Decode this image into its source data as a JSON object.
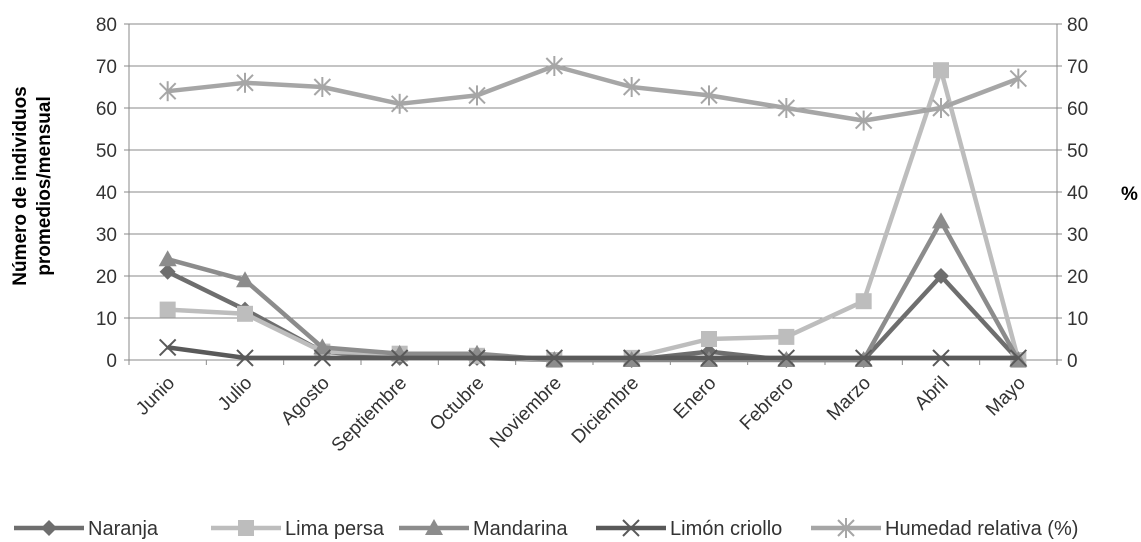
{
  "chart_data": {
    "type": "line",
    "categories": [
      "Junio",
      "Julio",
      "Agosto",
      "Septiembre",
      "Octubre",
      "Noviembre",
      "Diciembre",
      "Enero",
      "Febrero",
      "Marzo",
      "Abril",
      "Mayo"
    ],
    "ylabel_line1": "Número de individuos",
    "ylabel_line2": "promedios/mensual",
    "y2label": "%",
    "ylim": [
      0,
      80
    ],
    "y2lim": [
      0,
      80
    ],
    "yticks": [
      "0",
      "10",
      "20",
      "30",
      "40",
      "50",
      "60",
      "70",
      "80"
    ],
    "y2ticks": [
      "0",
      "10",
      "20",
      "30",
      "40",
      "50",
      "60",
      "70",
      "80"
    ],
    "grid": true,
    "legend_position": "bottom",
    "series": [
      {
        "name": "Naranja",
        "color": "#6e6e6e",
        "marker": "diamond",
        "axis": "left",
        "values": [
          21,
          12,
          2,
          0.5,
          0.5,
          0,
          0,
          2,
          0,
          0,
          20,
          0
        ]
      },
      {
        "name": "Lima persa",
        "color": "#bdbdbd",
        "marker": "square",
        "axis": "left",
        "values": [
          12,
          11,
          2,
          1.5,
          1,
          0,
          0.5,
          5,
          5.5,
          14,
          69,
          0
        ]
      },
      {
        "name": "Mandarina",
        "color": "#8c8c8c",
        "marker": "triangle",
        "axis": "left",
        "values": [
          24,
          19,
          3,
          1.5,
          1.5,
          0,
          0,
          0,
          0,
          0,
          33,
          0
        ]
      },
      {
        "name": "Limón criollo",
        "color": "#595959",
        "marker": "x",
        "axis": "left",
        "values": [
          3,
          0.5,
          0.5,
          0.5,
          0.5,
          0.5,
          0.5,
          0.5,
          0.5,
          0.5,
          0.5,
          0.5
        ]
      },
      {
        "name": "Humedad relativa (%)",
        "color": "#a6a6a6",
        "marker": "star",
        "axis": "right",
        "values": [
          64,
          66,
          65,
          61,
          63,
          70,
          65,
          63,
          60,
          57,
          60,
          67
        ]
      }
    ]
  }
}
